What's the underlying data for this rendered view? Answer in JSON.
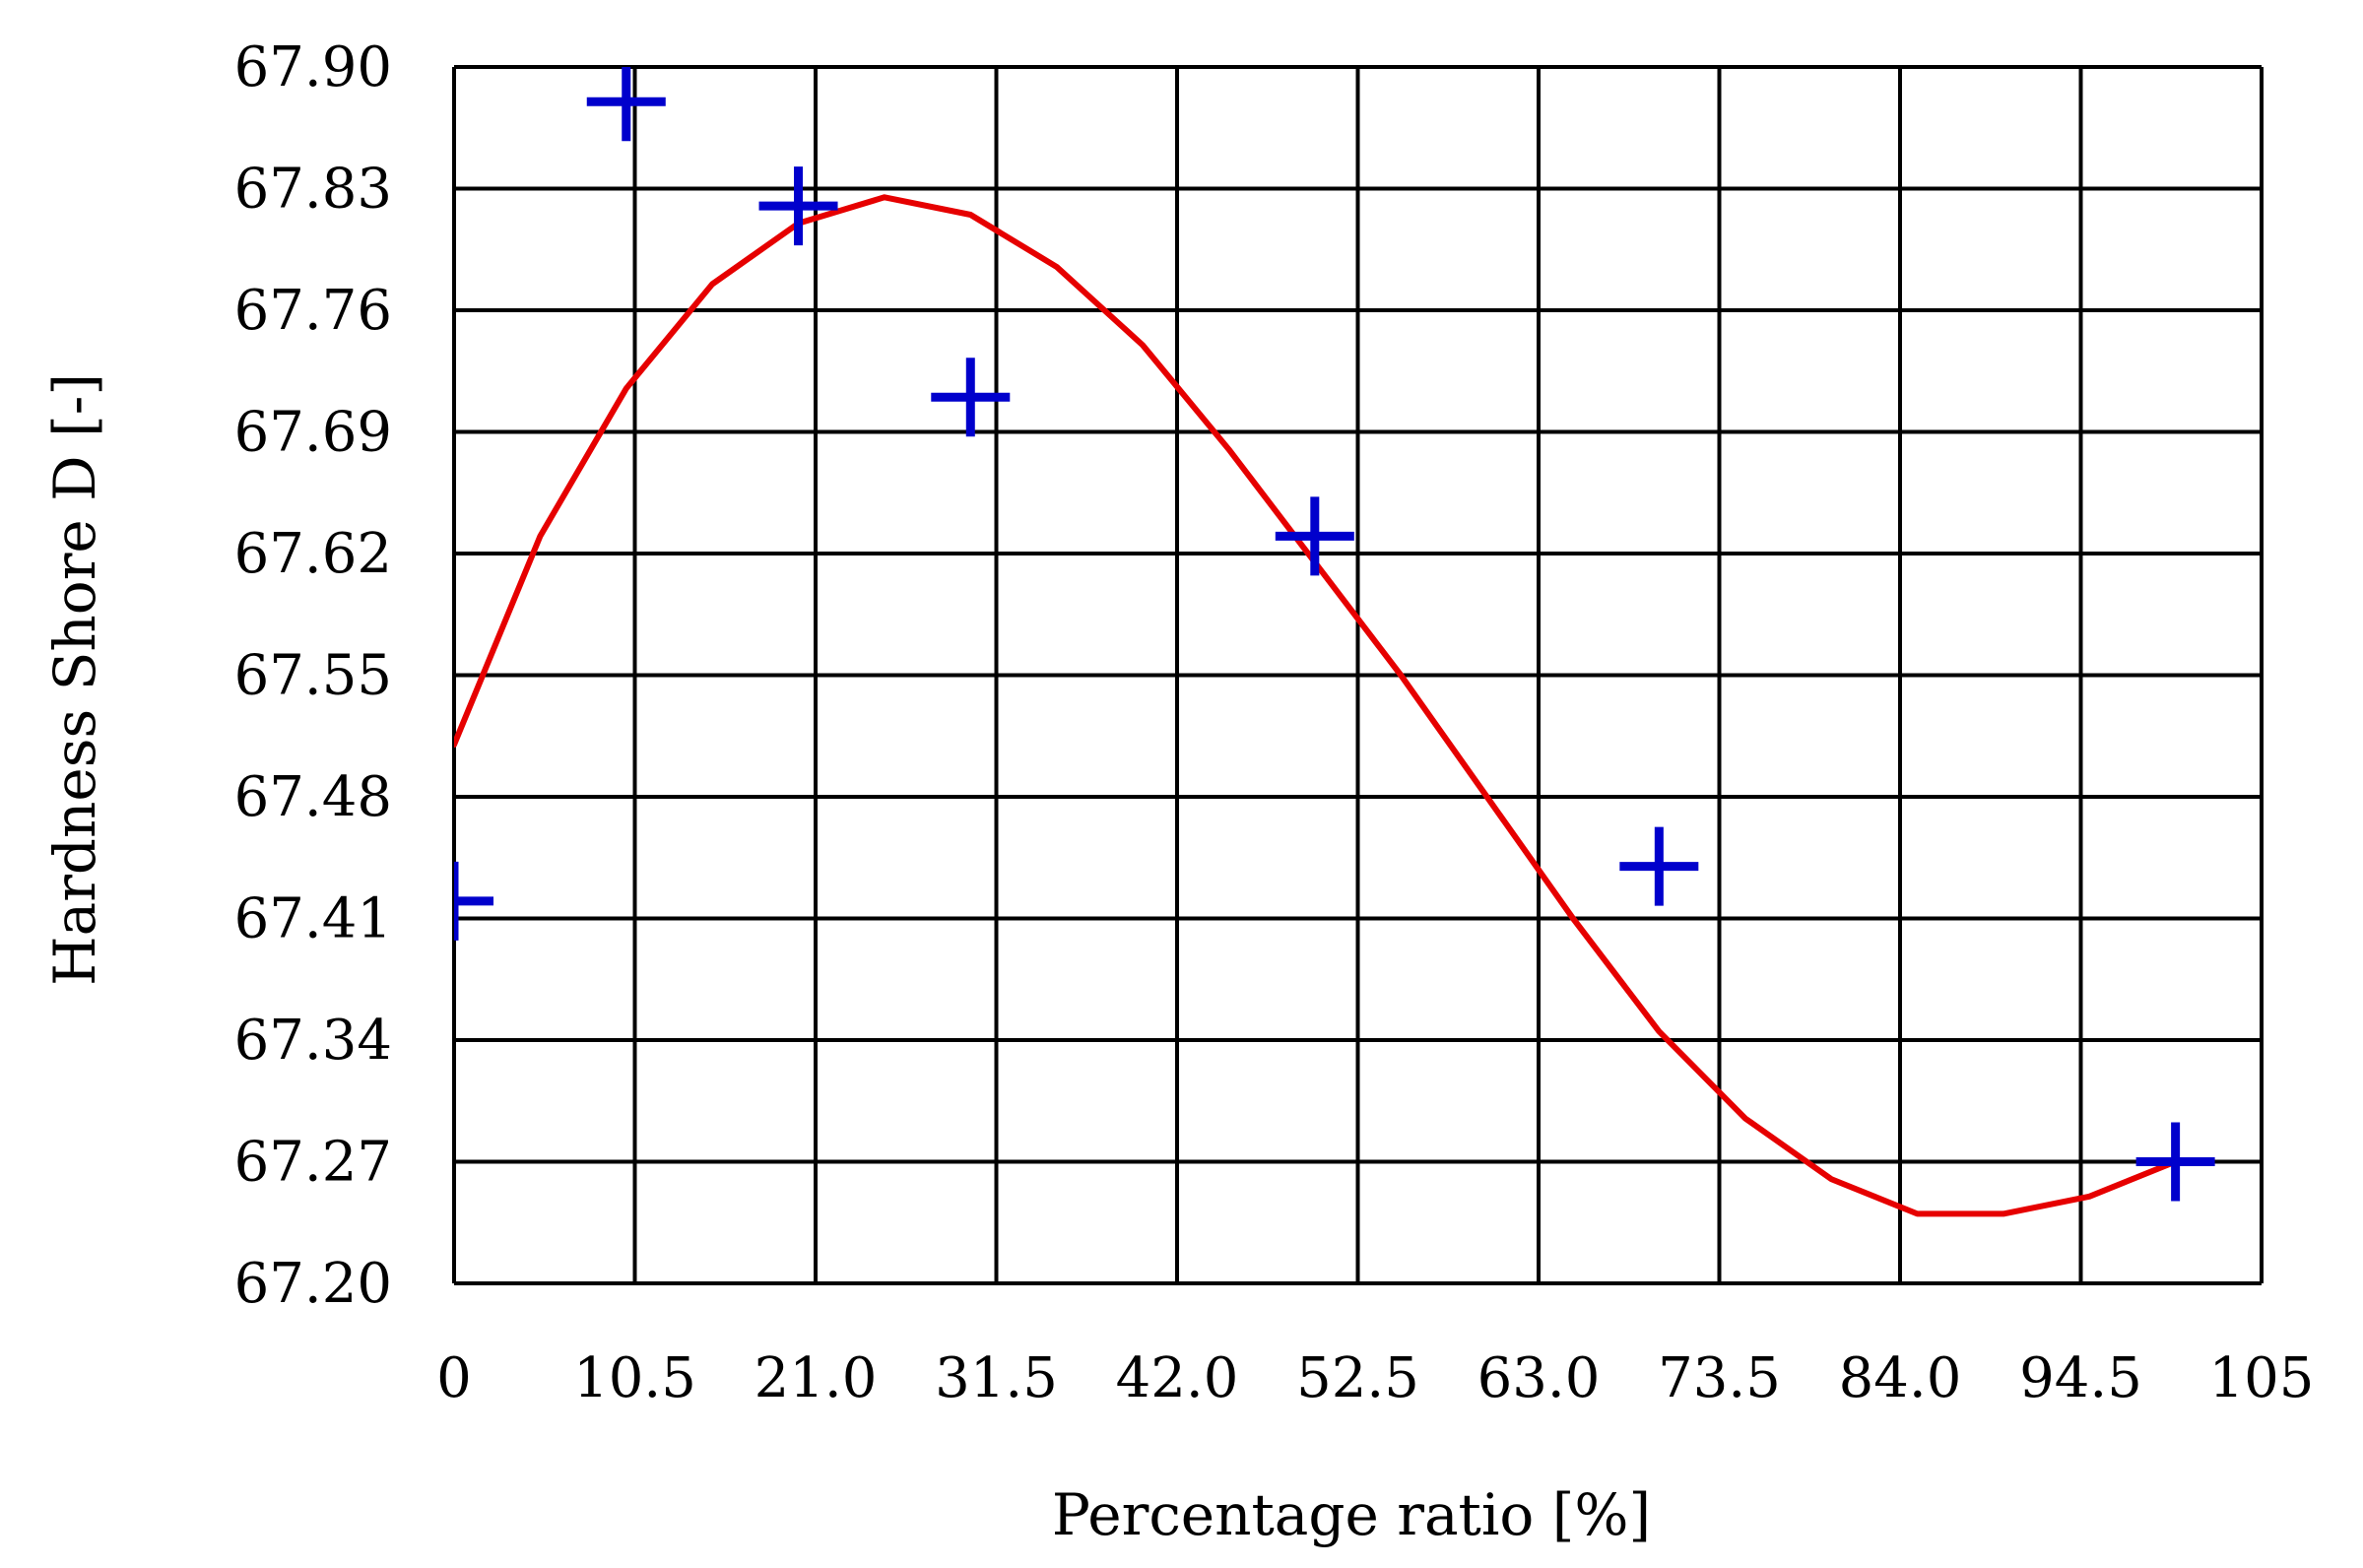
{
  "chart_data": {
    "type": "scatter",
    "title": "",
    "xlabel": "Percentage ratio [%]",
    "ylabel": "Hardness Shore D [-]",
    "xlim": [
      0,
      105
    ],
    "ylim": [
      67.2,
      67.9
    ],
    "x_tick_labels": [
      "0",
      "10.5",
      "21.0",
      "31.5",
      "42.0",
      "52.5",
      "63.0",
      "73.5",
      "84.0",
      "94.5",
      "105"
    ],
    "y_tick_labels": [
      "67.90",
      "67.83",
      "67.76",
      "67.69",
      "67.62",
      "67.55",
      "67.48",
      "67.41",
      "67.34",
      "67.27",
      "67.20"
    ],
    "grid": true,
    "series": [
      {
        "kind": "points",
        "marker": "plus",
        "color": "#0000cc",
        "points": [
          {
            "x": 0,
            "y": 67.42
          },
          {
            "x": 10,
            "y": 67.88
          },
          {
            "x": 20,
            "y": 67.82
          },
          {
            "x": 30,
            "y": 67.71
          },
          {
            "x": 50,
            "y": 67.63
          },
          {
            "x": 70,
            "y": 67.44
          },
          {
            "x": 100,
            "y": 67.27
          }
        ]
      },
      {
        "kind": "fit-curve",
        "color": "#e60000",
        "points": [
          {
            "x": 0,
            "y": 67.51
          },
          {
            "x": 5,
            "y": 67.63
          },
          {
            "x": 10,
            "y": 67.715
          },
          {
            "x": 15,
            "y": 67.775
          },
          {
            "x": 20,
            "y": 67.81
          },
          {
            "x": 25,
            "y": 67.825
          },
          {
            "x": 30,
            "y": 67.815
          },
          {
            "x": 35,
            "y": 67.785
          },
          {
            "x": 40,
            "y": 67.74
          },
          {
            "x": 45,
            "y": 67.68
          },
          {
            "x": 50,
            "y": 67.615
          },
          {
            "x": 55,
            "y": 67.55
          },
          {
            "x": 60,
            "y": 67.48
          },
          {
            "x": 65,
            "y": 67.41
          },
          {
            "x": 70,
            "y": 67.345
          },
          {
            "x": 75,
            "y": 67.295
          },
          {
            "x": 80,
            "y": 67.26
          },
          {
            "x": 85,
            "y": 67.24
          },
          {
            "x": 90,
            "y": 67.24
          },
          {
            "x": 95,
            "y": 67.25
          },
          {
            "x": 100,
            "y": 67.27
          }
        ]
      }
    ]
  }
}
